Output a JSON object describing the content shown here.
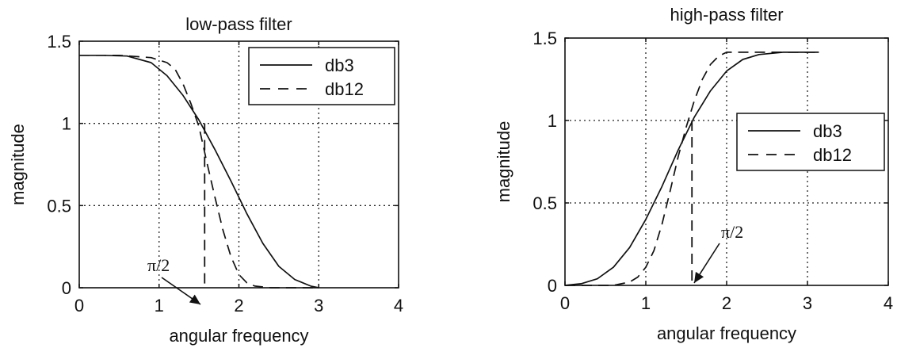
{
  "chart_data": [
    {
      "type": "line",
      "title": "low-pass filter",
      "xlabel": "angular frequency",
      "ylabel": "magnitude",
      "xlim": [
        0,
        4
      ],
      "ylim": [
        0,
        1.5
      ],
      "xticks": [
        "0",
        "1",
        "2",
        "3",
        "4"
      ],
      "yticks": [
        "0",
        "0.5",
        "1",
        "1.5"
      ],
      "grid": true,
      "legend_position": "top-right",
      "series": [
        {
          "name": "db3",
          "style": "solid",
          "x": [
            0,
            0.3,
            0.6,
            0.9,
            1.1,
            1.3,
            1.5,
            1.7,
            1.9,
            2.1,
            2.3,
            2.5,
            2.7,
            2.9,
            3.0
          ],
          "y": [
            1.414,
            1.414,
            1.41,
            1.37,
            1.29,
            1.17,
            1.02,
            0.84,
            0.65,
            0.45,
            0.27,
            0.13,
            0.05,
            0.01,
            0.0
          ]
        },
        {
          "name": "db12",
          "style": "dashed",
          "x": [
            0,
            0.5,
            0.9,
            1.1,
            1.2,
            1.3,
            1.4,
            1.5,
            1.6,
            1.7,
            1.8,
            1.9,
            2.0,
            2.1,
            2.2,
            2.4,
            2.7,
            3.0
          ],
          "y": [
            1.414,
            1.414,
            1.4,
            1.37,
            1.33,
            1.24,
            1.12,
            0.98,
            0.76,
            0.55,
            0.35,
            0.19,
            0.08,
            0.03,
            0.01,
            0.0,
            0.0,
            0.0
          ]
        }
      ],
      "annotation": {
        "text": "π/2",
        "x": 1.5708
      }
    },
    {
      "type": "line",
      "title": "high-pass filter",
      "xlabel": "angular frequency",
      "ylabel": "magnitude",
      "xlim": [
        0,
        4
      ],
      "ylim": [
        0,
        1.5
      ],
      "xticks": [
        "0",
        "1",
        "2",
        "3",
        "4"
      ],
      "yticks": [
        "0",
        "0.5",
        "1",
        "1.5"
      ],
      "grid": true,
      "legend_position": "center-right",
      "series": [
        {
          "name": "db3",
          "style": "solid",
          "x": [
            0,
            0.2,
            0.4,
            0.6,
            0.8,
            1.0,
            1.2,
            1.4,
            1.6,
            1.8,
            2.0,
            2.2,
            2.4,
            2.7,
            3.1416
          ],
          "y": [
            0.0,
            0.01,
            0.04,
            0.11,
            0.23,
            0.4,
            0.6,
            0.82,
            1.02,
            1.18,
            1.3,
            1.37,
            1.4,
            1.414,
            1.414
          ]
        },
        {
          "name": "db12",
          "style": "dashed",
          "x": [
            0,
            0.6,
            0.8,
            0.9,
            1.0,
            1.1,
            1.2,
            1.3,
            1.4,
            1.5,
            1.6,
            1.7,
            1.8,
            1.9,
            2.0,
            2.4,
            2.8,
            3.1416
          ],
          "y": [
            0.0,
            0.0,
            0.02,
            0.05,
            0.11,
            0.21,
            0.37,
            0.57,
            0.78,
            0.96,
            1.12,
            1.25,
            1.34,
            1.39,
            1.414,
            1.414,
            1.414,
            1.414
          ]
        }
      ],
      "annotation": {
        "text": "π/2",
        "x": 1.5708
      }
    }
  ]
}
